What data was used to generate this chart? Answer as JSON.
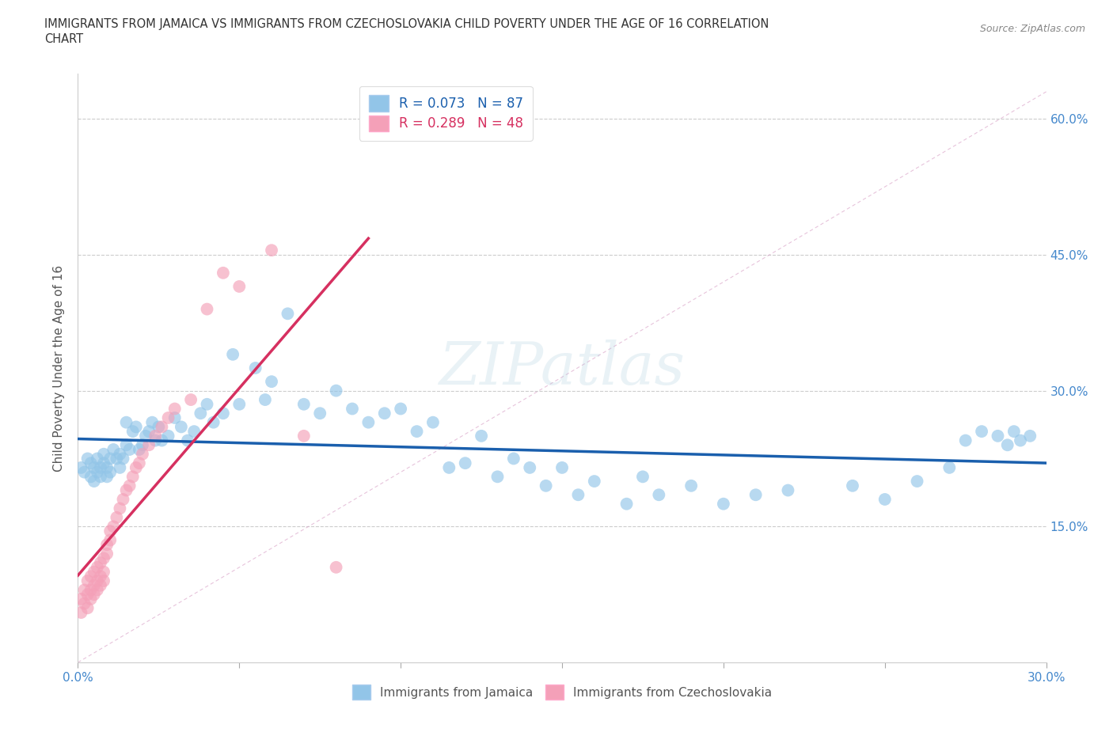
{
  "title_line1": "IMMIGRANTS FROM JAMAICA VS IMMIGRANTS FROM CZECHOSLOVAKIA CHILD POVERTY UNDER THE AGE OF 16 CORRELATION",
  "title_line2": "CHART",
  "source": "Source: ZipAtlas.com",
  "ylabel": "Child Poverty Under the Age of 16",
  "legend_label1": "Immigrants from Jamaica",
  "legend_label2": "Immigrants from Czechoslovakia",
  "R1": 0.073,
  "N1": 87,
  "R2": 0.289,
  "N2": 48,
  "color1": "#92C5E8",
  "color2": "#F4A0B8",
  "line_color1": "#1A5FAD",
  "line_color2": "#D63060",
  "ref_line_color": "#F4A0B8",
  "xlim": [
    0.0,
    0.3
  ],
  "ylim": [
    0.0,
    0.65
  ],
  "xticks": [
    0.0,
    0.05,
    0.1,
    0.15,
    0.2,
    0.25,
    0.3
  ],
  "yticks": [
    0.0,
    0.15,
    0.3,
    0.45,
    0.6
  ],
  "xticklabels": [
    "0.0%",
    "",
    "",
    "",
    "",
    "",
    "30.0%"
  ],
  "yticklabels": [
    "",
    "15.0%",
    "30.0%",
    "45.0%",
    "60.0%"
  ],
  "jamaica_x": [
    0.001,
    0.002,
    0.003,
    0.004,
    0.004,
    0.005,
    0.005,
    0.006,
    0.006,
    0.007,
    0.007,
    0.008,
    0.008,
    0.009,
    0.009,
    0.01,
    0.01,
    0.011,
    0.012,
    0.013,
    0.013,
    0.014,
    0.015,
    0.015,
    0.016,
    0.017,
    0.018,
    0.019,
    0.02,
    0.021,
    0.022,
    0.023,
    0.024,
    0.025,
    0.026,
    0.028,
    0.03,
    0.032,
    0.034,
    0.036,
    0.038,
    0.04,
    0.042,
    0.045,
    0.048,
    0.05,
    0.055,
    0.058,
    0.06,
    0.065,
    0.07,
    0.075,
    0.08,
    0.085,
    0.09,
    0.095,
    0.1,
    0.105,
    0.11,
    0.115,
    0.12,
    0.125,
    0.13,
    0.135,
    0.14,
    0.145,
    0.15,
    0.155,
    0.16,
    0.17,
    0.175,
    0.18,
    0.19,
    0.2,
    0.21,
    0.22,
    0.24,
    0.25,
    0.26,
    0.27,
    0.275,
    0.28,
    0.285,
    0.288,
    0.29,
    0.292,
    0.295
  ],
  "jamaica_y": [
    0.215,
    0.21,
    0.225,
    0.205,
    0.22,
    0.215,
    0.2,
    0.225,
    0.21,
    0.215,
    0.205,
    0.22,
    0.23,
    0.215,
    0.205,
    0.225,
    0.21,
    0.235,
    0.225,
    0.23,
    0.215,
    0.225,
    0.265,
    0.24,
    0.235,
    0.255,
    0.26,
    0.235,
    0.24,
    0.25,
    0.255,
    0.265,
    0.245,
    0.26,
    0.245,
    0.25,
    0.27,
    0.26,
    0.245,
    0.255,
    0.275,
    0.285,
    0.265,
    0.275,
    0.34,
    0.285,
    0.325,
    0.29,
    0.31,
    0.385,
    0.285,
    0.275,
    0.3,
    0.28,
    0.265,
    0.275,
    0.28,
    0.255,
    0.265,
    0.215,
    0.22,
    0.25,
    0.205,
    0.225,
    0.215,
    0.195,
    0.215,
    0.185,
    0.2,
    0.175,
    0.205,
    0.185,
    0.195,
    0.175,
    0.185,
    0.19,
    0.195,
    0.18,
    0.2,
    0.215,
    0.245,
    0.255,
    0.25,
    0.24,
    0.255,
    0.245,
    0.25
  ],
  "czech_x": [
    0.001,
    0.001,
    0.002,
    0.002,
    0.003,
    0.003,
    0.003,
    0.004,
    0.004,
    0.004,
    0.005,
    0.005,
    0.005,
    0.006,
    0.006,
    0.006,
    0.007,
    0.007,
    0.007,
    0.008,
    0.008,
    0.008,
    0.009,
    0.009,
    0.01,
    0.01,
    0.011,
    0.012,
    0.013,
    0.014,
    0.015,
    0.016,
    0.017,
    0.018,
    0.019,
    0.02,
    0.022,
    0.024,
    0.026,
    0.028,
    0.03,
    0.035,
    0.04,
    0.045,
    0.05,
    0.06,
    0.07,
    0.08
  ],
  "czech_y": [
    0.055,
    0.07,
    0.065,
    0.08,
    0.06,
    0.075,
    0.09,
    0.07,
    0.08,
    0.095,
    0.075,
    0.085,
    0.1,
    0.08,
    0.09,
    0.105,
    0.085,
    0.095,
    0.11,
    0.09,
    0.1,
    0.115,
    0.12,
    0.13,
    0.135,
    0.145,
    0.15,
    0.16,
    0.17,
    0.18,
    0.19,
    0.195,
    0.205,
    0.215,
    0.22,
    0.23,
    0.24,
    0.25,
    0.26,
    0.27,
    0.28,
    0.29,
    0.39,
    0.43,
    0.415,
    0.455,
    0.25,
    0.105
  ]
}
